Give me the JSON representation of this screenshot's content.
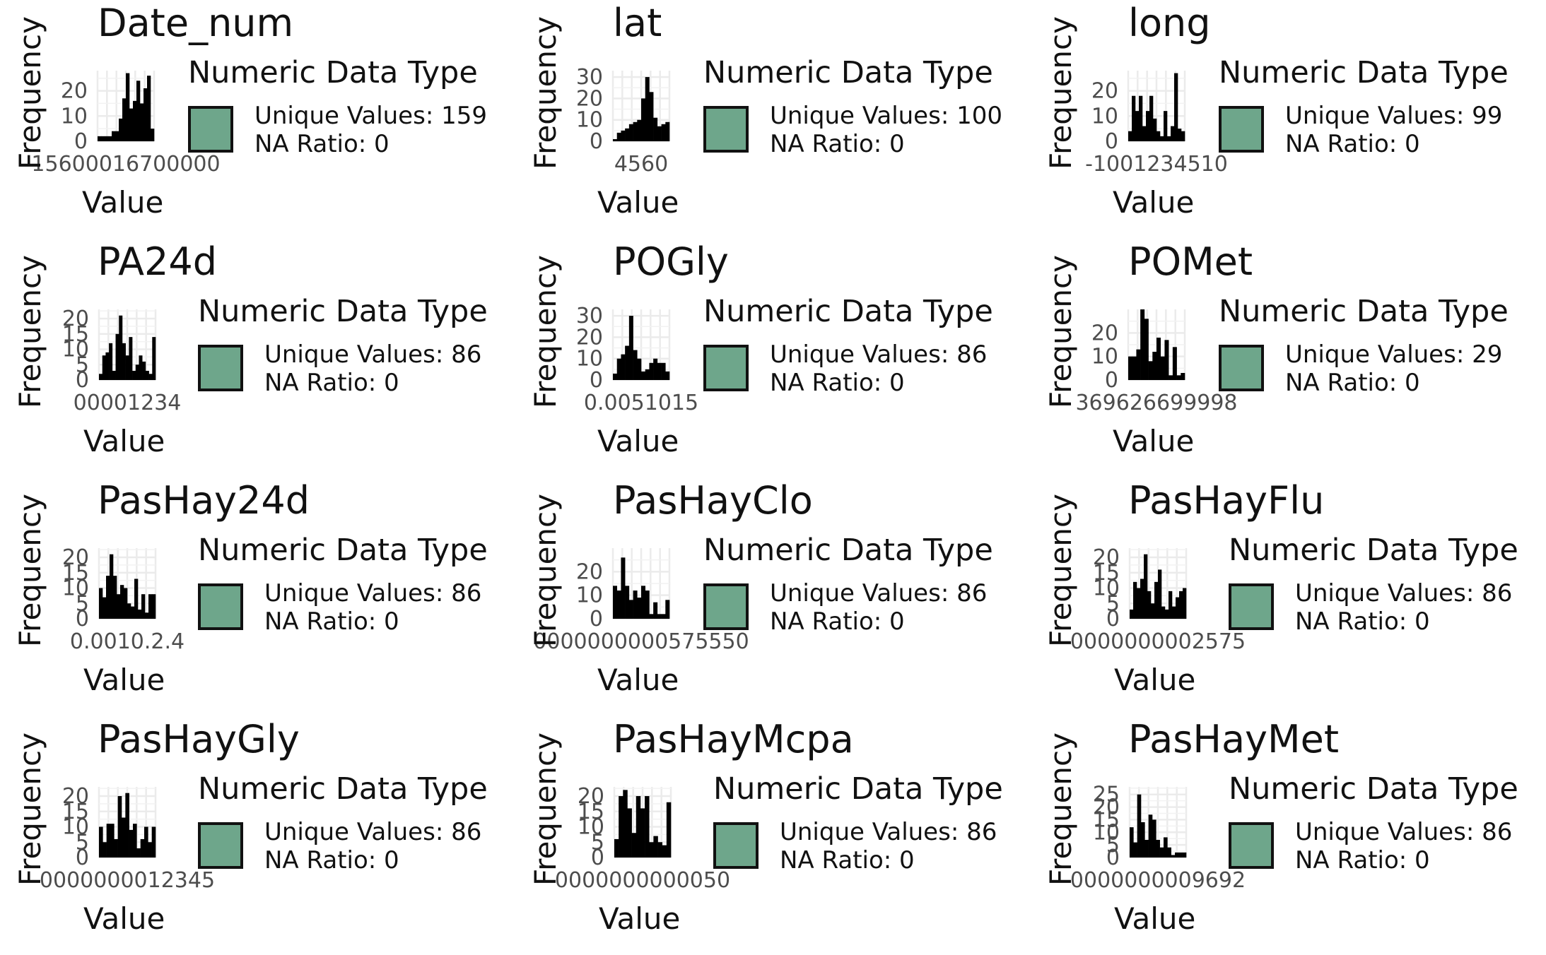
{
  "legend_title": "Numeric Data Type",
  "ylabel": "Frequency",
  "xlabel": "Value",
  "fill_color": "#6ea68b",
  "bar_color": "#000000",
  "chart_data": [
    {
      "type": "bar",
      "title": "Date_num",
      "xlabel": "Value",
      "ylabel": "Frequency",
      "unique_label": "Unique Values: 159",
      "na_label": "NA Ratio: 0",
      "yticks": [
        "0",
        "10",
        "20"
      ],
      "ymax": 28,
      "xtick_text": "15600016700000",
      "values": [
        2,
        2,
        2,
        2,
        4,
        4,
        9,
        17,
        27,
        13,
        16,
        24,
        15,
        21,
        26,
        5
      ]
    },
    {
      "type": "bar",
      "title": "lat",
      "xlabel": "Value",
      "ylabel": "Frequency",
      "unique_label": "Unique Values: 100",
      "na_label": "NA Ratio: 0",
      "yticks": [
        "0",
        "10",
        "20",
        "30"
      ],
      "ymax": 33,
      "xtick_text": "4560",
      "values": [
        1,
        4,
        5,
        6,
        8,
        9,
        10,
        20,
        30,
        23,
        11,
        7,
        8,
        9
      ]
    },
    {
      "type": "bar",
      "title": "long",
      "xlabel": "Value",
      "ylabel": "Frequency",
      "unique_label": "Unique Values: 99",
      "na_label": "NA Ratio: 0",
      "yticks": [
        "0",
        "10",
        "20"
      ],
      "ymax": 28,
      "xtick_text": "-1001234510",
      "values": [
        4,
        18,
        12,
        18,
        6,
        12,
        18,
        9,
        4,
        2,
        12,
        2,
        6,
        27,
        5,
        4
      ]
    },
    {
      "type": "bar",
      "title": "PA24d",
      "xlabel": "Value",
      "ylabel": "Frequency",
      "unique_label": "Unique Values: 86",
      "na_label": "NA Ratio: 0",
      "yticks": [
        "0",
        "5",
        "10",
        "15",
        "20"
      ],
      "ymax": 23,
      "xtick_text": "00001234",
      "values": [
        2,
        8,
        9,
        12,
        3,
        15,
        21,
        12,
        8,
        14,
        3,
        5,
        8,
        6,
        3,
        2,
        14
      ]
    },
    {
      "type": "bar",
      "title": "POGly",
      "xlabel": "Value",
      "ylabel": "Frequency",
      "unique_label": "Unique Values: 86",
      "na_label": "NA Ratio: 0",
      "yticks": [
        "0",
        "10",
        "20",
        "30"
      ],
      "ymax": 33,
      "xtick_text": "0.0051015",
      "values": [
        3,
        10,
        12,
        16,
        30,
        14,
        10,
        4,
        5,
        8,
        10,
        8,
        8,
        4
      ]
    },
    {
      "type": "bar",
      "title": "POMet",
      "xlabel": "Value",
      "ylabel": "Frequency",
      "unique_label": "Unique Values: 29",
      "na_label": "NA Ratio: 0",
      "yticks": [
        "0",
        "10",
        "20"
      ],
      "ymax": 30,
      "xtick_text": "369626699998",
      "values": [
        10,
        10,
        13,
        30,
        26,
        8,
        12,
        18,
        10,
        17,
        2,
        14,
        2,
        3
      ]
    },
    {
      "type": "bar",
      "title": "PasHay24d",
      "xlabel": "Value",
      "ylabel": "Frequency",
      "unique_label": "Unique Values: 86",
      "na_label": "NA Ratio: 0",
      "yticks": [
        "0",
        "5",
        "10",
        "15",
        "20"
      ],
      "ymax": 23,
      "xtick_text": "0.0010.2.4",
      "values": [
        10,
        7,
        14,
        21,
        14,
        8,
        11,
        10,
        5,
        4,
        13,
        3,
        8,
        2,
        8,
        8
      ]
    },
    {
      "type": "bar",
      "title": "PasHayClo",
      "xlabel": "Value",
      "ylabel": "Frequency",
      "unique_label": "Unique Values: 86",
      "na_label": "NA Ratio: 0",
      "yticks": [
        "0",
        "10",
        "20"
      ],
      "ymax": 30,
      "xtick_text": "0000000000575550",
      "values": [
        14,
        12,
        26,
        14,
        8,
        12,
        9,
        14,
        12,
        2,
        7,
        2,
        2,
        8
      ]
    },
    {
      "type": "bar",
      "title": "PasHayFlu",
      "xlabel": "Value",
      "ylabel": "Frequency",
      "unique_label": "Unique Values: 86",
      "na_label": "NA Ratio: 0",
      "yticks": [
        "0",
        "5",
        "10",
        "15",
        "20"
      ],
      "ymax": 23,
      "xtick_text": "0000000002575",
      "values": [
        3,
        12,
        10,
        13,
        21,
        9,
        5,
        12,
        16,
        4,
        3,
        9,
        4,
        7,
        9,
        10
      ]
    },
    {
      "type": "bar",
      "title": "PasHayGly",
      "xlabel": "Value",
      "ylabel": "Frequency",
      "unique_label": "Unique Values: 86",
      "na_label": "NA Ratio: 0",
      "yticks": [
        "0",
        "5",
        "10",
        "15",
        "20"
      ],
      "ymax": 23,
      "xtick_text": "0000000012345",
      "values": [
        10,
        5,
        11,
        11,
        6,
        20,
        13,
        21,
        9,
        11,
        3,
        6,
        10,
        5,
        10
      ]
    },
    {
      "type": "bar",
      "title": "PasHayMcpa",
      "xlabel": "Value",
      "ylabel": "Frequency",
      "unique_label": "Unique Values: 86",
      "na_label": "NA Ratio: 0",
      "yticks": [
        "0",
        "5",
        "10",
        "15",
        "20"
      ],
      "ymax": 23,
      "xtick_text": "0000000000050",
      "values": [
        6,
        20,
        22,
        16,
        8,
        20,
        16,
        20,
        5,
        7,
        5,
        4,
        18
      ]
    },
    {
      "type": "bar",
      "title": "PasHayMet",
      "xlabel": "Value",
      "ylabel": "Frequency",
      "unique_label": "Unique Values: 86",
      "na_label": "NA Ratio: 0",
      "yticks": [
        "0",
        "5",
        "10",
        "15",
        "20",
        "25"
      ],
      "ymax": 28,
      "xtick_text": "0000000009692",
      "values": [
        12,
        6,
        25,
        14,
        7,
        17,
        15,
        7,
        4,
        8,
        4,
        1,
        2,
        2,
        2
      ]
    }
  ]
}
